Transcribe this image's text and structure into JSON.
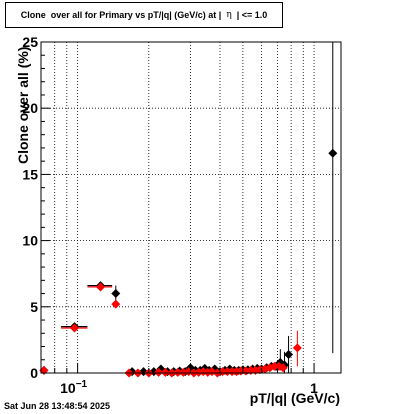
{
  "chart_data": {
    "type": "scatter",
    "title_prefix": "Clone  over all for Primary vs pT/|q| (GeV/c) at |  ",
    "title_symbol": "η",
    "title_suffix": "  | <= 1.0",
    "xlabel": "pT/|q| (GeV/c)",
    "ylabel": "Clone  over all (%)",
    "xscale": "log",
    "xlim": [
      0.07,
      1.3
    ],
    "ylim": [
      0,
      25
    ],
    "yticks": [
      0,
      5,
      10,
      15,
      20,
      25
    ],
    "xtick_labels": [
      {
        "value": 0.1,
        "label": "10",
        "exp": "−1"
      },
      {
        "value": 1,
        "label": "1"
      }
    ],
    "grid": true,
    "series": [
      {
        "color": "#000000",
        "points": [
          {
            "x": 0.072,
            "y": 0.2
          },
          {
            "x": 0.097,
            "y": 3.5,
            "xerr": [
              0.085,
              0.11
            ]
          },
          {
            "x": 0.125,
            "y": 6.6,
            "xerr": [
              0.11,
              0.14
            ]
          },
          {
            "x": 0.145,
            "y": 6.0,
            "yerr": [
              5.5,
              6.6
            ]
          },
          {
            "x": 0.17,
            "y": 0.1
          },
          {
            "x": 0.19,
            "y": 0.1
          },
          {
            "x": 0.21,
            "y": 0.1
          },
          {
            "x": 0.225,
            "y": 0.3
          },
          {
            "x": 0.24,
            "y": 0.1
          },
          {
            "x": 0.255,
            "y": 0.1
          },
          {
            "x": 0.27,
            "y": 0.15
          },
          {
            "x": 0.285,
            "y": 0.1
          },
          {
            "x": 0.3,
            "y": 0.4
          },
          {
            "x": 0.315,
            "y": 0.2
          },
          {
            "x": 0.33,
            "y": 0.2
          },
          {
            "x": 0.345,
            "y": 0.35
          },
          {
            "x": 0.36,
            "y": 0.2
          },
          {
            "x": 0.38,
            "y": 0.3
          },
          {
            "x": 0.4,
            "y": 0.1
          },
          {
            "x": 0.42,
            "y": 0.2
          },
          {
            "x": 0.44,
            "y": 0.3
          },
          {
            "x": 0.46,
            "y": 0.2
          },
          {
            "x": 0.48,
            "y": 0.2
          },
          {
            "x": 0.5,
            "y": 0.25
          },
          {
            "x": 0.525,
            "y": 0.25
          },
          {
            "x": 0.55,
            "y": 0.3
          },
          {
            "x": 0.575,
            "y": 0.35
          },
          {
            "x": 0.6,
            "y": 0.3
          },
          {
            "x": 0.63,
            "y": 0.4
          },
          {
            "x": 0.66,
            "y": 0.5
          },
          {
            "x": 0.69,
            "y": 0.5
          },
          {
            "x": 0.72,
            "y": 0.8,
            "yerr": [
              0.2,
              1.8
            ]
          },
          {
            "x": 0.75,
            "y": 0.6,
            "yerr": [
              0.0,
              1.6
            ]
          },
          {
            "x": 0.78,
            "y": 1.4,
            "yerr": [
              0.0,
              2.8
            ]
          },
          {
            "x": 1.2,
            "y": 16.6,
            "yerr": [
              1.5,
              25
            ]
          }
        ]
      },
      {
        "color": "#ff0000",
        "points": [
          {
            "x": 0.072,
            "y": 0.2
          },
          {
            "x": 0.097,
            "y": 3.4,
            "xerr": [
              0.085,
              0.11
            ]
          },
          {
            "x": 0.125,
            "y": 6.5,
            "xerr": [
              0.11,
              0.14
            ]
          },
          {
            "x": 0.145,
            "y": 5.2
          },
          {
            "x": 0.165,
            "y": 0.0
          },
          {
            "x": 0.18,
            "y": 0.0
          },
          {
            "x": 0.2,
            "y": 0.0
          },
          {
            "x": 0.22,
            "y": 0.05
          },
          {
            "x": 0.235,
            "y": 0.05
          },
          {
            "x": 0.25,
            "y": 0.0
          },
          {
            "x": 0.265,
            "y": 0.05
          },
          {
            "x": 0.28,
            "y": 0.05
          },
          {
            "x": 0.295,
            "y": 0.1
          },
          {
            "x": 0.31,
            "y": 0.0
          },
          {
            "x": 0.325,
            "y": 0.05
          },
          {
            "x": 0.34,
            "y": 0.1
          },
          {
            "x": 0.355,
            "y": 0.05
          },
          {
            "x": 0.37,
            "y": 0.1
          },
          {
            "x": 0.39,
            "y": 0.0
          },
          {
            "x": 0.41,
            "y": 0.1
          },
          {
            "x": 0.43,
            "y": 0.1
          },
          {
            "x": 0.45,
            "y": 0.1
          },
          {
            "x": 0.47,
            "y": 0.1
          },
          {
            "x": 0.49,
            "y": 0.15
          },
          {
            "x": 0.515,
            "y": 0.15
          },
          {
            "x": 0.54,
            "y": 0.2
          },
          {
            "x": 0.565,
            "y": 0.2
          },
          {
            "x": 0.59,
            "y": 0.25
          },
          {
            "x": 0.62,
            "y": 0.3
          },
          {
            "x": 0.65,
            "y": 0.4
          },
          {
            "x": 0.68,
            "y": 0.5
          },
          {
            "x": 0.71,
            "y": 0.5
          },
          {
            "x": 0.74,
            "y": 0.4
          },
          {
            "x": 0.85,
            "y": 1.9,
            "yerr": [
              0.5,
              3.2
            ]
          }
        ]
      }
    ]
  },
  "footer": {
    "timestamp": "Sat Jun 28 13:48:54 2025"
  }
}
